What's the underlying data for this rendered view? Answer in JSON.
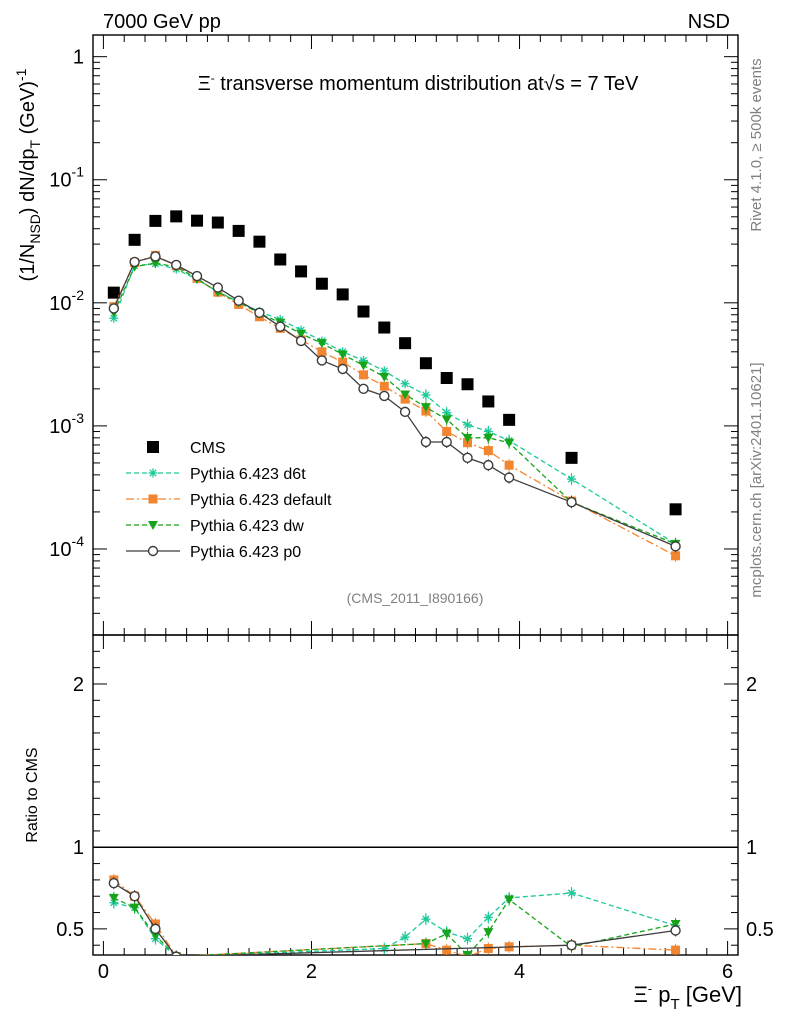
{
  "header": {
    "energy_label": "7000 GeV pp",
    "process_label": "NSD"
  },
  "side_labels": {
    "rivet": "Rivet 4.1.0, ≥ 500k events",
    "mcplots": "mcplots.cern.ch [arXiv:2401.10621]"
  },
  "chart_data": [
    {
      "type": "scatter",
      "panel": "main",
      "title": "Ξ⁻ transverse momentum distribution at √s = 7 TeV",
      "title_parts": {
        "particle": "Ξ",
        "charge": "-",
        "mid": " transverse momentum distribution at",
        "sqrt_var": "s",
        "tail": " = 7 TeV"
      },
      "ylabel": "(1/N_NSD) dN/dp_T (GeV)^-1",
      "ylabel_parts": {
        "open": "(1/N",
        "sub1": "NSD",
        "mid": ") dN/dp",
        "sub2": "T",
        "unit": " (GeV)",
        "sup": "-1"
      },
      "yscale": "log",
      "ylim": [
        2e-05,
        1.5
      ],
      "xlim": [
        -0.1,
        6.1
      ],
      "y_tick_labels": [
        {
          "value": 1,
          "mant": "1",
          "exp": ""
        },
        {
          "value": 0.1,
          "mant": "10",
          "exp": "-1"
        },
        {
          "value": 0.01,
          "mant": "10",
          "exp": "-2"
        },
        {
          "value": 0.001,
          "mant": "10",
          "exp": "-3"
        },
        {
          "value": 0.0001,
          "mant": "10",
          "exp": "-4"
        }
      ],
      "watermark": "(CMS_2011_I890166)",
      "legend_position": "lower-left",
      "x": [
        0.1,
        0.3,
        0.5,
        0.7,
        0.9,
        1.1,
        1.3,
        1.5,
        1.7,
        1.9,
        2.1,
        2.3,
        2.5,
        2.7,
        2.9,
        3.1,
        3.3,
        3.5,
        3.7,
        3.9,
        4.5,
        5.5
      ],
      "series": [
        {
          "name": "CMS",
          "color": "#000000",
          "marker": "square",
          "line": "none",
          "values": [
            0.0121,
            0.0325,
            0.0463,
            0.0504,
            0.0465,
            0.0449,
            0.0384,
            0.0314,
            0.0225,
            0.018,
            0.0143,
            0.0117,
            0.0085,
            0.0063,
            0.0047,
            0.00323,
            0.00245,
            0.00218,
            0.00158,
            0.00112,
            0.00055,
            0.00021
          ]
        },
        {
          "name": "Pythia 6.423 d6t",
          "color": "#1dc99a",
          "marker": "star",
          "line": "dashed",
          "values": [
            0.0075,
            0.02,
            0.0208,
            0.0188,
            0.0155,
            0.0123,
            0.0102,
            0.0085,
            0.0073,
            0.006,
            0.0049,
            0.004,
            0.0034,
            0.0028,
            0.0022,
            0.00178,
            0.00128,
            0.00102,
            0.0009,
            0.00076,
            0.00037,
            0.00011
          ]
        },
        {
          "name": "Pythia 6.423 default",
          "color": "#f28530",
          "marker": "square-small",
          "line": "dashdot",
          "values": [
            0.0093,
            0.0213,
            0.0243,
            0.02,
            0.0158,
            0.0122,
            0.0097,
            0.0077,
            0.0062,
            0.005,
            0.004,
            0.0033,
            0.0026,
            0.0021,
            0.00165,
            0.00132,
            0.0009,
            0.00073,
            0.00063,
            0.00048,
            0.000245,
            8.8e-05
          ]
        },
        {
          "name": "Pythia 6.423 dw",
          "color": "#17a31a",
          "marker": "triangle-down",
          "line": "dashed",
          "values": [
            0.0083,
            0.0197,
            0.021,
            0.0196,
            0.0157,
            0.0122,
            0.0101,
            0.0082,
            0.0069,
            0.0056,
            0.0047,
            0.0038,
            0.0031,
            0.0025,
            0.0018,
            0.00142,
            0.00113,
            0.0008,
            0.0008,
            0.00073,
            0.00024,
            0.00011
          ]
        },
        {
          "name": "Pythia 6.423 p0",
          "color": "#3c3c3c",
          "marker": "circle-open",
          "line": "solid",
          "values": [
            0.009,
            0.0215,
            0.0238,
            0.0203,
            0.0165,
            0.0133,
            0.0104,
            0.0083,
            0.0064,
            0.0049,
            0.0034,
            0.0029,
            0.002,
            0.00175,
            0.0013,
            0.00074,
            0.00074,
            0.00055,
            0.00048,
            0.00038,
            0.00024,
            0.000105
          ]
        }
      ]
    },
    {
      "type": "scatter",
      "panel": "ratio",
      "ylabel": "Ratio to CMS",
      "xlabel": "Ξ⁻ p_T [GeV]",
      "xlabel_parts": {
        "particle": "Ξ",
        "charge": "-",
        "mid": " p",
        "sub": "T",
        "unit": " [GeV]"
      },
      "ylim": [
        0.34,
        2.3
      ],
      "xlim": [
        -0.1,
        6.1
      ],
      "x_ticks": [
        0,
        2,
        4,
        6
      ],
      "x_tick_labels": [
        "0",
        "2",
        "4",
        "6"
      ],
      "y_ticks": [
        0.5,
        1,
        2
      ],
      "y_tick_labels": [
        "0.5",
        "1",
        "2"
      ],
      "reference_line": 1,
      "series": [
        {
          "name": "Pythia 6.423 d6t",
          "color": "#1dc99a",
          "marker": "star",
          "line": "dashed",
          "x": [
            0.1,
            0.3,
            0.5,
            0.7,
            2.7,
            2.9,
            3.1,
            3.3,
            3.5,
            3.7,
            3.9,
            4.5,
            5.5
          ],
          "values": [
            0.66,
            0.63,
            0.44,
            0.33,
            0.38,
            0.45,
            0.56,
            0.48,
            0.44,
            0.57,
            0.69,
            0.72,
            0.52
          ]
        },
        {
          "name": "Pythia 6.423 default",
          "color": "#f28530",
          "marker": "square-small",
          "line": "dashdot",
          "x": [
            0.1,
            0.3,
            0.5,
            0.7,
            3.1,
            3.3,
            3.5,
            3.7,
            3.9,
            4.5,
            5.5
          ],
          "values": [
            0.8,
            0.7,
            0.53,
            0.33,
            0.41,
            0.37,
            0.33,
            0.38,
            0.39,
            0.4,
            0.37
          ]
        },
        {
          "name": "Pythia 6.423 dw",
          "color": "#17a31a",
          "marker": "triangle-down",
          "line": "dashed",
          "x": [
            0.1,
            0.3,
            0.5,
            0.7,
            3.1,
            3.3,
            3.5,
            3.7,
            3.9,
            4.5,
            5.5
          ],
          "values": [
            0.69,
            0.63,
            0.46,
            0.33,
            0.41,
            0.47,
            0.34,
            0.48,
            0.68,
            0.39,
            0.53
          ]
        },
        {
          "name": "Pythia 6.423 p0",
          "color": "#3c3c3c",
          "marker": "circle-open",
          "line": "solid",
          "x": [
            0.1,
            0.3,
            0.5,
            0.7,
            4.5,
            5.5
          ],
          "values": [
            0.78,
            0.7,
            0.5,
            0.33,
            0.4,
            0.49
          ]
        }
      ]
    }
  ]
}
